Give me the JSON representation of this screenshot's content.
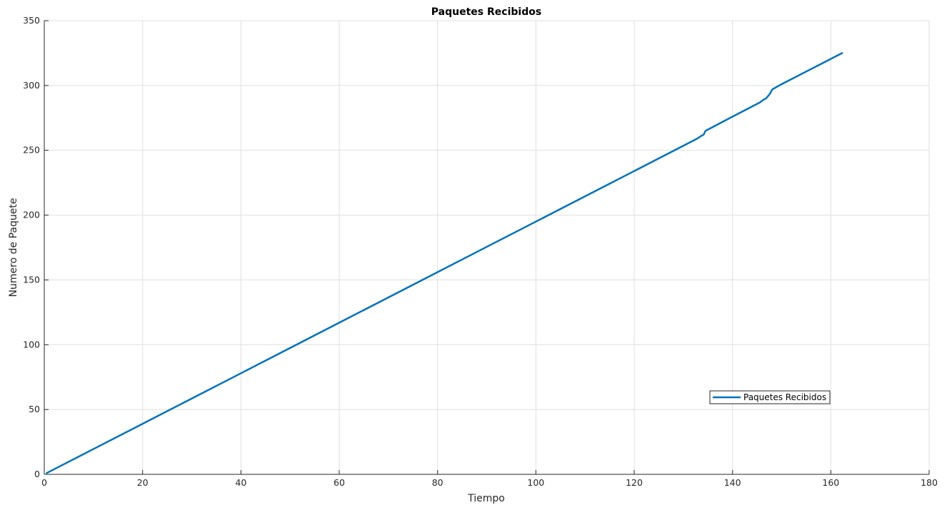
{
  "chart_data": {
    "type": "line",
    "title": "Paquetes Recibidos",
    "xlabel": "Tiempo",
    "ylabel": "Numero de Paquete",
    "xlim": [
      0,
      180
    ],
    "ylim": [
      0,
      350
    ],
    "xticks": [
      0,
      20,
      40,
      60,
      80,
      100,
      120,
      140,
      160,
      180
    ],
    "yticks": [
      0,
      50,
      100,
      150,
      200,
      250,
      300,
      350
    ],
    "grid": true,
    "legend_position": "lower-right",
    "series": [
      {
        "name": "Paquetes Recibidos",
        "color": "#0072BD",
        "x": [
          0.5,
          20,
          40,
          60,
          80,
          100,
          120,
          132.8,
          133.6,
          134.1,
          134.5,
          140,
          145.6,
          146.3,
          146.8,
          147.5,
          148.1,
          150,
          162.3
        ],
        "y": [
          1,
          39,
          78,
          117,
          156,
          195,
          234,
          259,
          261,
          262,
          265,
          276,
          287,
          289,
          290,
          293,
          297,
          301,
          325
        ]
      }
    ]
  }
}
